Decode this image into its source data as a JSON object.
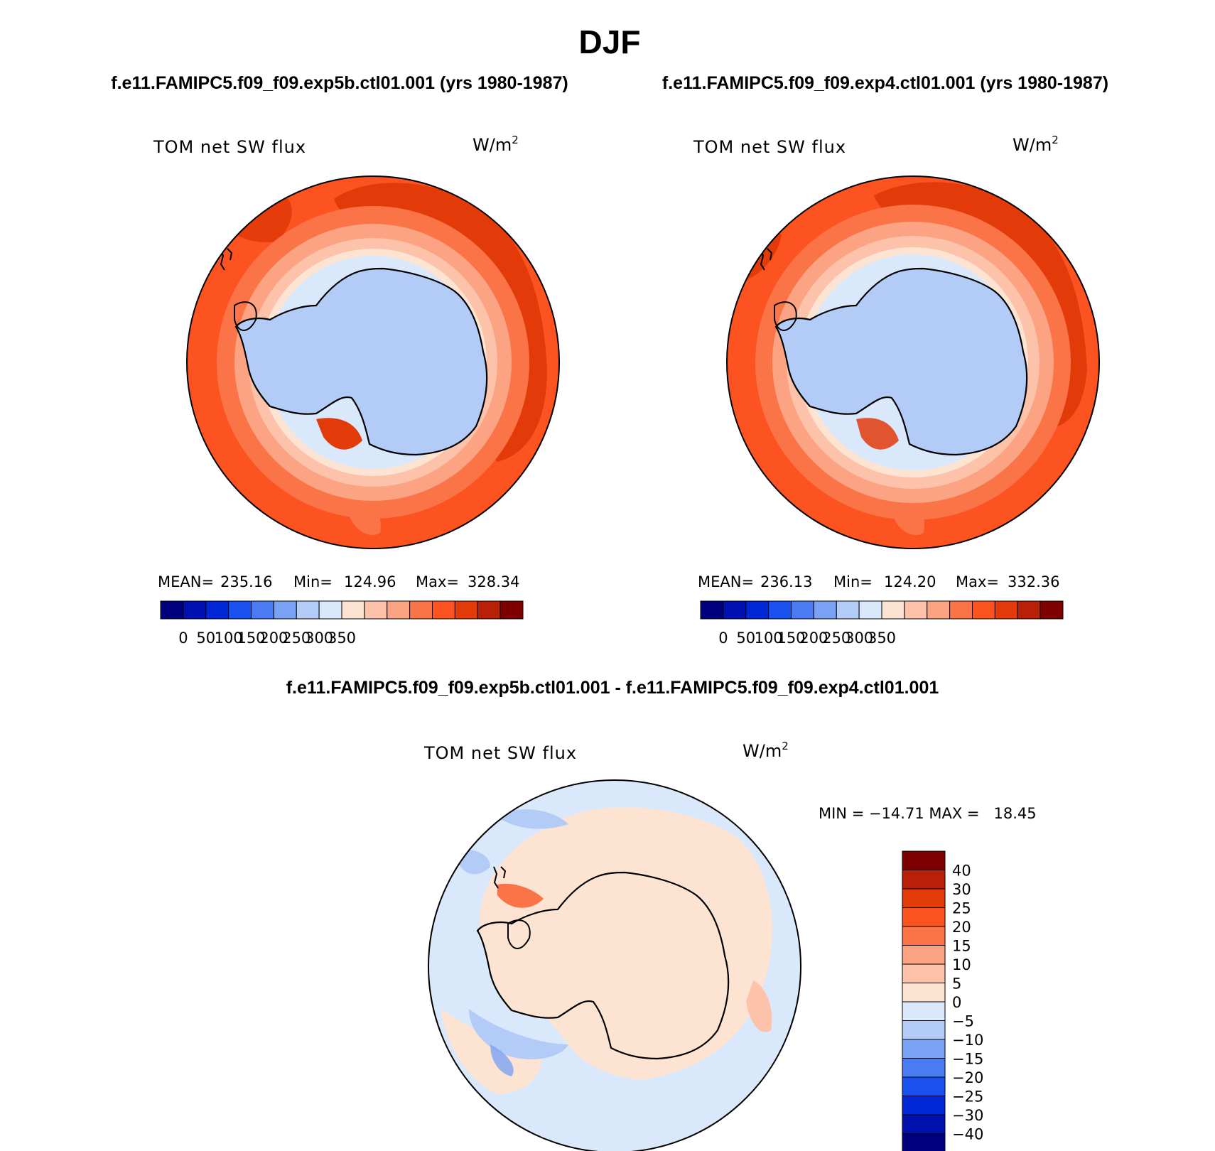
{
  "page": {
    "season": "DJF",
    "case1_title": "f.e11.FAMIPC5.f09_f09.exp5b.ctl01.001 (yrs 1980-1987)",
    "case2_title": "f.e11.FAMIPC5.f09_f09.exp4.ctl01.001 (yrs 1980-1987)",
    "diff_title": "f.e11.FAMIPC5.f09_f09.exp5b.ctl01.001 - f.e11.FAMIPC5.f09_f09.exp4.ctl01.001"
  },
  "panels": [
    {
      "variable": "TOM net SW flux",
      "units_base": "W/m",
      "units_exp": "2",
      "stats": {
        "mean_label": "MEAN=",
        "mean": "235.16",
        "min_label": "Min=",
        "min": "124.96",
        "max_label": "Max=",
        "max": "328.34"
      }
    },
    {
      "variable": "TOM net SW flux",
      "units_base": "W/m",
      "units_exp": "2",
      "stats": {
        "mean_label": "MEAN=",
        "mean": "236.13",
        "min_label": "Min=",
        "min": "124.20",
        "max_label": "Max=",
        "max": "332.36"
      }
    }
  ],
  "diff_panel": {
    "variable": "TOM net SW flux",
    "units_base": "W/m",
    "units_exp": "2",
    "stats_text": "MIN = −14.71 MAX =   18.45"
  },
  "chart_data": [
    {
      "type": "heatmap",
      "projection": "south-polar-stereographic",
      "title": "TOM net SW flux",
      "units": "W/m2",
      "stats": {
        "mean": 235.16,
        "min": 124.96,
        "max": 328.34
      },
      "colorbar": {
        "orientation": "horizontal",
        "tick_labels": [
          "0",
          "50",
          "100",
          "150",
          "200",
          "250",
          "300",
          "350"
        ],
        "colors": [
          "#00007f",
          "#0011b0",
          "#0026d6",
          "#1a4ff0",
          "#4a7bf2",
          "#7aa2f4",
          "#b3ccf7",
          "#d9e8fa",
          "#fde3d2",
          "#fcc2aa",
          "#fca383",
          "#fb7448",
          "#fc5320",
          "#e33a0a",
          "#b82108",
          "#7f0000"
        ]
      }
    },
    {
      "type": "heatmap",
      "projection": "south-polar-stereographic",
      "title": "TOM net SW flux",
      "units": "W/m2",
      "stats": {
        "mean": 236.13,
        "min": 124.2,
        "max": 332.36
      },
      "colorbar": {
        "orientation": "horizontal",
        "tick_labels": [
          "0",
          "50",
          "100",
          "150",
          "200",
          "250",
          "300",
          "350"
        ],
        "colors": [
          "#00007f",
          "#0011b0",
          "#0026d6",
          "#1a4ff0",
          "#4a7bf2",
          "#7aa2f4",
          "#b3ccf7",
          "#d9e8fa",
          "#fde3d2",
          "#fcc2aa",
          "#fca383",
          "#fb7448",
          "#fc5320",
          "#e33a0a",
          "#b82108",
          "#7f0000"
        ]
      }
    },
    {
      "type": "heatmap",
      "projection": "south-polar-stereographic",
      "title": "TOM net SW flux",
      "units": "W/m2",
      "stats": {
        "min": -14.71,
        "max": 18.45
      },
      "colorbar": {
        "orientation": "vertical",
        "tick_labels": [
          "40",
          "30",
          "25",
          "20",
          "15",
          "10",
          "5",
          "0",
          "−5",
          "−10",
          "−15",
          "−20",
          "−25",
          "−30",
          "−40"
        ],
        "colors_top_to_bottom": [
          "#7f0000",
          "#b82108",
          "#e33a0a",
          "#fc5320",
          "#fb7448",
          "#fca383",
          "#fcc2aa",
          "#fde3d2",
          "#d9e8fa",
          "#b3ccf7",
          "#7aa2f4",
          "#4a7bf2",
          "#1a4ff0",
          "#0026d6",
          "#0011b0",
          "#00007f"
        ]
      }
    }
  ]
}
